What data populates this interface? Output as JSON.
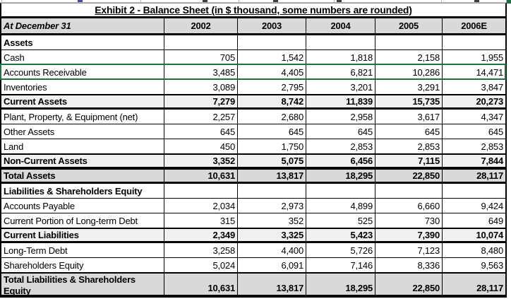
{
  "title": "Exhibit 2 - Balance Sheet (in $ thousand, some numbers are rounded)",
  "header": {
    "label": "At December 31",
    "years": [
      "2002",
      "2003",
      "2004",
      "2005",
      "2006E"
    ]
  },
  "colors": {
    "header_bg": "#d9d9d9",
    "subtotal_bg": "#f0f0f0",
    "total_bg": "#d9d9d9",
    "selection_green": "#1E7145"
  },
  "selection": {
    "selected_row_label": "Accounts Receivable"
  },
  "rows": [
    {
      "label": "Assets",
      "values": [
        "",
        "",
        "",
        "",
        ""
      ],
      "style": "section"
    },
    {
      "label": "Cash",
      "values": [
        "705",
        "1,542",
        "1,818",
        "2,158",
        "1,955"
      ],
      "style": "plain"
    },
    {
      "label": "Accounts Receivable",
      "values": [
        "3,485",
        "4,405",
        "6,821",
        "10,286",
        "14,471"
      ],
      "style": "plain",
      "selected": true
    },
    {
      "label": "Inventories",
      "values": [
        "3,089",
        "2,795",
        "3,201",
        "3,291",
        "3,847"
      ],
      "style": "plain"
    },
    {
      "label": "Current Assets",
      "values": [
        "7,279",
        "8,742",
        "11,839",
        "15,735",
        "20,273"
      ],
      "style": "subtotal"
    },
    {
      "label": "Plant, Property, & Equipment (net)",
      "values": [
        "2,257",
        "2,680",
        "2,958",
        "3,617",
        "4,347"
      ],
      "style": "plain"
    },
    {
      "label": "Other Assets",
      "values": [
        "645",
        "645",
        "645",
        "645",
        "645"
      ],
      "style": "plain"
    },
    {
      "label": "Land",
      "values": [
        "450",
        "1,750",
        "2,853",
        "2,853",
        "2,853"
      ],
      "style": "plain"
    },
    {
      "label": "Non-Current Assets",
      "values": [
        "3,352",
        "5,075",
        "6,456",
        "7,115",
        "7,844"
      ],
      "style": "subtotal"
    },
    {
      "label": "Total Assets",
      "values": [
        "10,631",
        "13,817",
        "18,295",
        "22,850",
        "28,117"
      ],
      "style": "total"
    },
    {
      "label": "Liabilities & Shareholders Equity",
      "values": [
        "",
        "",
        "",
        "",
        ""
      ],
      "style": "section"
    },
    {
      "label": "Accounts Payable",
      "values": [
        "2,034",
        "2,973",
        "4,899",
        "6,660",
        "9,424"
      ],
      "style": "plain"
    },
    {
      "label": "Current Portion of Long-term Debt",
      "values": [
        "315",
        "352",
        "525",
        "730",
        "649"
      ],
      "style": "plain"
    },
    {
      "label": "Current Liabilities",
      "values": [
        "2,349",
        "3,325",
        "5,423",
        "7,390",
        "10,074"
      ],
      "style": "subtotal"
    },
    {
      "label": "Long-Term Debt",
      "values": [
        "3,258",
        "4,400",
        "5,726",
        "7,123",
        "8,480"
      ],
      "style": "plain"
    },
    {
      "label": "Shareholders Equity",
      "values": [
        "5,024",
        "6,091",
        "7,146",
        "8,336",
        "9,563"
      ],
      "style": "plain"
    },
    {
      "label": "Total Liabilities & Shareholders Equity",
      "values": [
        "10,631",
        "13,817",
        "18,295",
        "22,850",
        "28,117"
      ],
      "style": "total",
      "tall": true
    }
  ]
}
